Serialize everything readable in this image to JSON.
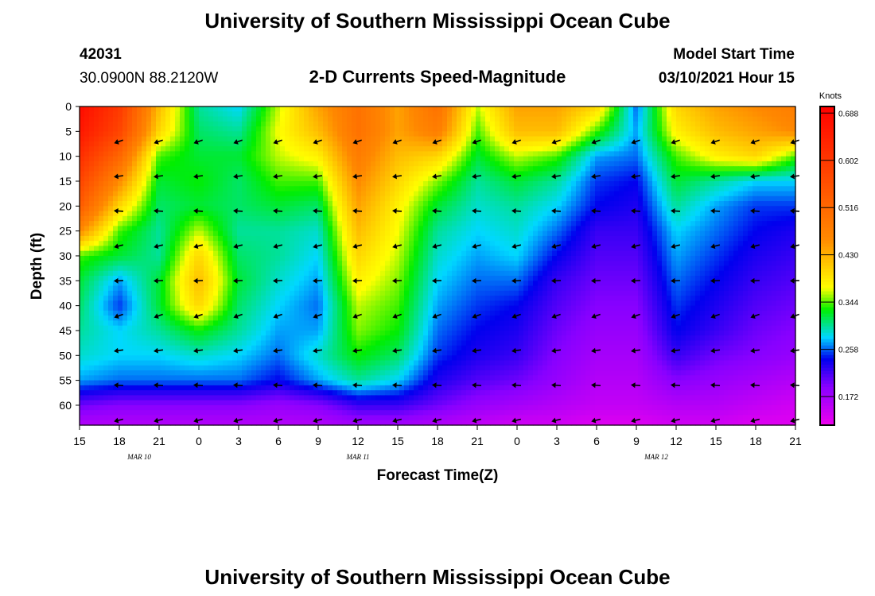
{
  "header": {
    "title": "University of Southern Mississippi Ocean Cube",
    "station_id": "42031",
    "station_coords": "30.0900N 88.2120W",
    "plot_title": "2-D Currents Speed-Magnitude",
    "model_start_label": "Model Start Time",
    "model_start_value": "03/10/2021 Hour 15"
  },
  "footer": {
    "title": "University of Southern Mississippi Ocean Cube"
  },
  "chart_data": {
    "type": "heatmap",
    "title": "2-D Currents Speed-Magnitude",
    "xlabel": "Forecast Time(Z)",
    "ylabel": "Depth (ft)",
    "x_ticks": [
      "15",
      "18",
      "21",
      "0",
      "3",
      "6",
      "9",
      "12",
      "15",
      "18",
      "21",
      "0",
      "3",
      "6",
      "9",
      "12",
      "15",
      "18",
      "21"
    ],
    "x_range_hours": [
      0,
      54
    ],
    "date_labels": [
      {
        "text": "MAR 10",
        "hour": 4.5
      },
      {
        "text": "MAR 11",
        "hour": 21
      },
      {
        "text": "MAR 12",
        "hour": 43.5
      }
    ],
    "y_ticks": [
      "0",
      "5",
      "10",
      "15",
      "20",
      "25",
      "30",
      "35",
      "40",
      "45",
      "50",
      "55",
      "60"
    ],
    "y_range_ft": [
      0,
      64
    ],
    "colorbar": {
      "unit": "Knots",
      "ticks": [
        "0.688",
        "0.602",
        "0.516",
        "0.430",
        "0.344",
        "0.258",
        "0.172"
      ],
      "range": [
        0.12,
        0.7
      ],
      "stops": [
        {
          "v": 0.12,
          "color": "#ee00ee"
        },
        {
          "v": 0.19,
          "color": "#8800ff"
        },
        {
          "v": 0.24,
          "color": "#0000ee"
        },
        {
          "v": 0.28,
          "color": "#00d8ff"
        },
        {
          "v": 0.33,
          "color": "#00ee00"
        },
        {
          "v": 0.37,
          "color": "#ffff00"
        },
        {
          "v": 0.46,
          "color": "#ff8800"
        },
        {
          "v": 0.7,
          "color": "#ff0000"
        }
      ]
    },
    "depths_ft": [
      0,
      5,
      10,
      15,
      20,
      25,
      30,
      35,
      40,
      45,
      50,
      55,
      60,
      64
    ],
    "times_h": [
      0,
      3,
      6,
      9,
      12,
      15,
      18,
      21,
      24,
      27,
      30,
      33,
      36,
      39,
      42,
      45,
      48,
      51,
      54
    ],
    "speed_knots": [
      [
        0.68,
        0.6,
        0.42,
        0.3,
        0.28,
        0.36,
        0.44,
        0.5,
        0.44,
        0.5,
        0.36,
        0.44,
        0.44,
        0.4,
        0.26,
        0.4,
        0.44,
        0.46,
        0.48
      ],
      [
        0.66,
        0.58,
        0.4,
        0.31,
        0.3,
        0.37,
        0.42,
        0.5,
        0.44,
        0.48,
        0.34,
        0.42,
        0.42,
        0.34,
        0.27,
        0.38,
        0.42,
        0.44,
        0.46
      ],
      [
        0.62,
        0.52,
        0.34,
        0.32,
        0.32,
        0.36,
        0.38,
        0.48,
        0.42,
        0.4,
        0.32,
        0.36,
        0.34,
        0.27,
        0.26,
        0.34,
        0.38,
        0.4,
        0.34
      ],
      [
        0.58,
        0.46,
        0.32,
        0.33,
        0.31,
        0.34,
        0.34,
        0.46,
        0.4,
        0.35,
        0.3,
        0.32,
        0.3,
        0.25,
        0.24,
        0.32,
        0.3,
        0.28,
        0.28
      ],
      [
        0.54,
        0.4,
        0.31,
        0.32,
        0.31,
        0.32,
        0.31,
        0.44,
        0.38,
        0.32,
        0.29,
        0.3,
        0.28,
        0.24,
        0.23,
        0.3,
        0.27,
        0.25,
        0.25
      ],
      [
        0.46,
        0.34,
        0.3,
        0.36,
        0.3,
        0.3,
        0.29,
        0.42,
        0.37,
        0.3,
        0.28,
        0.29,
        0.26,
        0.22,
        0.22,
        0.28,
        0.26,
        0.24,
        0.23
      ],
      [
        0.34,
        0.32,
        0.3,
        0.4,
        0.31,
        0.3,
        0.28,
        0.4,
        0.36,
        0.29,
        0.27,
        0.28,
        0.24,
        0.21,
        0.21,
        0.27,
        0.25,
        0.23,
        0.22
      ],
      [
        0.32,
        0.27,
        0.32,
        0.42,
        0.32,
        0.29,
        0.27,
        0.38,
        0.35,
        0.28,
        0.26,
        0.26,
        0.22,
        0.2,
        0.2,
        0.26,
        0.24,
        0.22,
        0.21
      ],
      [
        0.31,
        0.25,
        0.32,
        0.4,
        0.31,
        0.28,
        0.26,
        0.36,
        0.34,
        0.27,
        0.25,
        0.24,
        0.21,
        0.19,
        0.19,
        0.25,
        0.23,
        0.21,
        0.2
      ],
      [
        0.3,
        0.28,
        0.3,
        0.33,
        0.3,
        0.27,
        0.27,
        0.35,
        0.33,
        0.26,
        0.24,
        0.23,
        0.2,
        0.18,
        0.18,
        0.24,
        0.22,
        0.2,
        0.19
      ],
      [
        0.29,
        0.28,
        0.28,
        0.29,
        0.28,
        0.26,
        0.29,
        0.33,
        0.31,
        0.25,
        0.23,
        0.22,
        0.19,
        0.17,
        0.17,
        0.22,
        0.2,
        0.19,
        0.18
      ],
      [
        0.27,
        0.26,
        0.26,
        0.26,
        0.26,
        0.24,
        0.27,
        0.3,
        0.28,
        0.23,
        0.21,
        0.2,
        0.18,
        0.16,
        0.16,
        0.19,
        0.18,
        0.17,
        0.16
      ],
      [
        0.2,
        0.19,
        0.19,
        0.19,
        0.19,
        0.18,
        0.19,
        0.22,
        0.22,
        0.2,
        0.18,
        0.17,
        0.16,
        0.15,
        0.15,
        0.16,
        0.16,
        0.15,
        0.14
      ],
      [
        0.16,
        0.16,
        0.16,
        0.16,
        0.16,
        0.16,
        0.16,
        0.17,
        0.17,
        0.16,
        0.15,
        0.14,
        0.14,
        0.13,
        0.13,
        0.14,
        0.14,
        0.13,
        0.13
      ]
    ],
    "arrows": {
      "times_h": [
        3,
        6,
        9,
        12,
        15,
        18,
        21,
        24,
        27,
        30,
        33,
        36,
        39,
        42,
        45,
        48,
        51,
        54
      ],
      "depths_ft": [
        7,
        14,
        21,
        28,
        35,
        42,
        49,
        56,
        63
      ],
      "direction": "toward west / southwest (left)"
    }
  }
}
